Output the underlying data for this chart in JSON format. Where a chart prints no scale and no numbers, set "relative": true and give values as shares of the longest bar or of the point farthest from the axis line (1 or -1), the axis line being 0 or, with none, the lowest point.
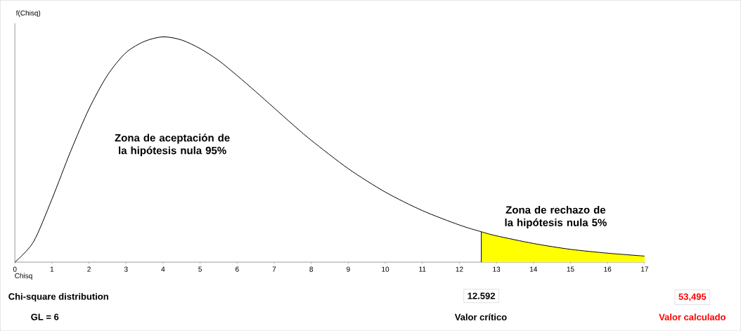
{
  "chart_data": {
    "type": "line",
    "xlabel": "Chisq",
    "ylabel": "f(Chisq)",
    "relative": true,
    "tick_labels": "x",
    "xlim": [
      0,
      17
    ],
    "xticks": [
      0,
      1,
      2,
      3,
      4,
      5,
      6,
      7,
      8,
      9,
      10,
      11,
      12,
      13,
      14,
      15,
      16,
      17
    ],
    "series": [
      {
        "type": "area",
        "color": "#ffff00",
        "x": [
          12.592,
          13,
          13.5,
          14,
          14.5,
          15,
          15.5,
          16,
          16.5,
          17
        ],
        "values": [
          0.135,
          0.117,
          0.099,
          0.083,
          0.069,
          0.057,
          0.048,
          0.04,
          0.033,
          0.027
        ]
      },
      {
        "color": "#000000",
        "x": [
          0,
          0.5,
          1,
          1.5,
          2,
          2.5,
          3,
          3.5,
          4,
          4.5,
          5,
          5.5,
          6,
          6.5,
          7,
          7.5,
          8,
          9,
          10,
          11,
          12,
          12.592,
          13,
          14,
          15,
          16,
          17
        ],
        "values": [
          0,
          0.09,
          0.28,
          0.49,
          0.68,
          0.83,
          0.93,
          0.98,
          1,
          0.986,
          0.948,
          0.895,
          0.828,
          0.757,
          0.684,
          0.611,
          0.541,
          0.415,
          0.311,
          0.229,
          0.165,
          0.135,
          0.117,
          0.083,
          0.057,
          0.04,
          0.027
        ]
      }
    ],
    "ref_lines": [
      {
        "axis": "x",
        "value": 12.592,
        "label": "12.592",
        "color": "#000000"
      }
    ],
    "annotations": [
      "Zona de aceptación de la hipótesis nula 95%",
      "Zona de rechazo de la hipótesis nula 5%",
      "Chi-square distribution",
      "GL = 6",
      "Valor crítico",
      "53,495",
      "Valor calculado"
    ]
  }
}
